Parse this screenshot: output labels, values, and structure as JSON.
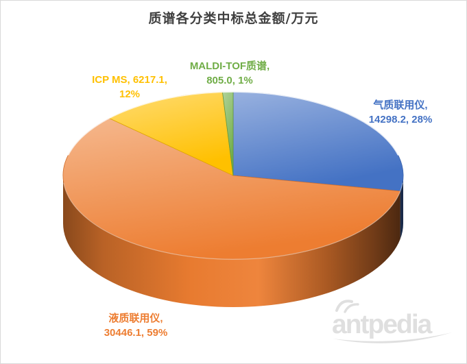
{
  "title": {
    "text": "质谱各分类中标总金额/万元",
    "color": "#404040"
  },
  "chart_data": {
    "type": "pie",
    "style": "3d-pie",
    "title": "质谱各分类中标总金额/万元",
    "unit": "万元",
    "start_angle_deg": 0,
    "direction": "clockwise",
    "legend": "none",
    "slices": [
      {
        "name": "气质联用仪",
        "value": 14298.2,
        "pct": 28,
        "color": "#4472C4",
        "label_line1": "气质联用仪,",
        "label_line2": "14298.2, 28%"
      },
      {
        "name": "液质联用仪",
        "value": 30446.1,
        "pct": 59,
        "color": "#ED7D31",
        "label_line1": "液质联用仪,",
        "label_line2": "30446.1, 59%"
      },
      {
        "name": "ICP MS",
        "value": 6217.1,
        "pct": 12,
        "color": "#FFC000",
        "label_line1": "ICP MS, 6217.1,",
        "label_line2": "12%"
      },
      {
        "name": "MALDI-TOF质谱",
        "value": 805.0,
        "pct": 1,
        "color": "#70AD47",
        "label_line1": "MALDI-TOF质谱,",
        "label_line2": "805.0, 1%"
      }
    ]
  },
  "watermark": {
    "text": "antpedia",
    "color": "#DDDDDD"
  },
  "frame": {
    "border_color": "#D9D9D9",
    "background": "#FFFFFF"
  }
}
